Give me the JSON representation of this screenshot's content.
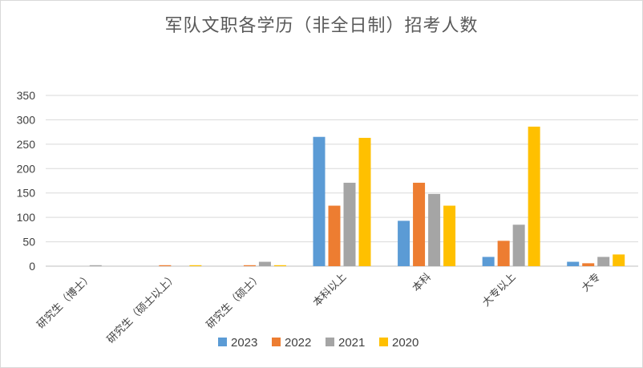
{
  "chart_data": {
    "type": "bar",
    "title": "军队文职各学历（非全日制）招考人数",
    "categories": [
      "研究生（博士）",
      "研究生（硕士以上）",
      "研究生（硕士）",
      "本科以上",
      "本科",
      "大专以上",
      "大专"
    ],
    "series": [
      {
        "name": "2023",
        "color": "#5b9bd5",
        "values": [
          0,
          0,
          0,
          265,
          93,
          19,
          9
        ]
      },
      {
        "name": "2022",
        "color": "#ed7d31",
        "values": [
          0,
          2,
          2,
          124,
          171,
          52,
          6
        ]
      },
      {
        "name": "2021",
        "color": "#a5a5a5",
        "values": [
          2,
          0,
          9,
          171,
          148,
          85,
          19
        ]
      },
      {
        "name": "2020",
        "color": "#ffc000",
        "values": [
          0,
          2,
          2,
          263,
          124,
          286,
          24
        ]
      }
    ],
    "ylim": [
      0,
      350
    ],
    "yticks": [
      0,
      50,
      100,
      150,
      200,
      250,
      300,
      350
    ],
    "grid": true,
    "legend_position": "bottom"
  }
}
